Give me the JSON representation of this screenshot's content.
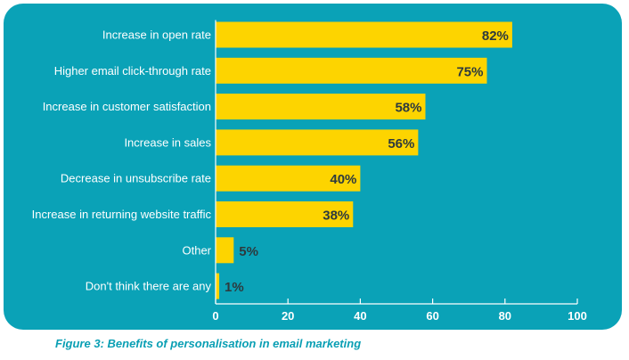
{
  "chart_data": {
    "type": "bar",
    "orientation": "horizontal",
    "categories": [
      "Increase in open rate",
      "Higher email click-through rate",
      "Increase in customer satisfaction",
      "Increase in sales",
      "Decrease in unsubscribe rate",
      "Increase in returning website traffic",
      "Other",
      "Don't think there are any"
    ],
    "values": [
      82,
      75,
      58,
      56,
      40,
      38,
      5,
      1
    ],
    "value_labels": [
      "82%",
      "75%",
      "58%",
      "56%",
      "40%",
      "38%",
      "5%",
      "1%"
    ],
    "xlim": [
      0,
      100
    ],
    "xticks": [
      0,
      20,
      40,
      60,
      80,
      100
    ],
    "tick_labels": [
      "0",
      "20",
      "40",
      "60",
      "80",
      "100"
    ],
    "grid": false,
    "legend": "none"
  },
  "caption": "Figure 3: Benefits of personalisation in email marketing",
  "colors": {
    "background": "#0aa2b7",
    "bar": "#fdd400",
    "value_label": "#2d3a3e",
    "axis": "#ffffff",
    "caption": "#0a9fb4"
  }
}
